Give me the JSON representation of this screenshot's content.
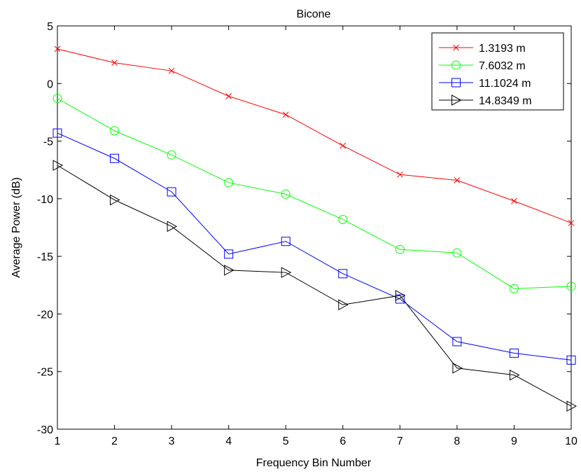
{
  "chart_data": {
    "type": "line",
    "title": "Bicone",
    "xlabel": "Frequency Bin Number",
    "ylabel": "Average Power (dB)",
    "xlim": [
      1,
      10
    ],
    "ylim": [
      -30,
      5
    ],
    "x": [
      1,
      2,
      3,
      4,
      5,
      6,
      7,
      8,
      9,
      10
    ],
    "xticks": [
      "1",
      "2",
      "3",
      "4",
      "5",
      "6",
      "7",
      "8",
      "9",
      "10"
    ],
    "yticks": [
      "5",
      "0",
      "-5",
      "-10",
      "-15",
      "-20",
      "-25",
      "-30"
    ],
    "grid": false,
    "legend_position": "top-right",
    "series": [
      {
        "name": "1.3193 m",
        "color": "#ff0000",
        "marker": "x-mark",
        "values": [
          3.0,
          1.8,
          1.1,
          -1.1,
          -2.7,
          -5.4,
          -7.9,
          -8.4,
          -10.2,
          -12.1
        ]
      },
      {
        "name": "7.6032 m",
        "color": "#00ff00",
        "marker": "circle",
        "values": [
          -1.3,
          -4.1,
          -6.2,
          -8.6,
          -9.6,
          -11.8,
          -14.4,
          -14.7,
          -17.8,
          -17.6
        ]
      },
      {
        "name": "11.1024 m",
        "color": "#0000ff",
        "marker": "square",
        "values": [
          -4.3,
          -6.5,
          -9.4,
          -14.8,
          -13.7,
          -16.5,
          -18.7,
          -22.4,
          -23.4,
          -24.0
        ]
      },
      {
        "name": "14.8349 m",
        "color": "#000000",
        "marker": "triangle-right",
        "values": [
          -7.1,
          -10.1,
          -12.4,
          -16.2,
          -16.4,
          -19.2,
          -18.4,
          -24.7,
          -25.3,
          -28.0
        ]
      }
    ]
  }
}
